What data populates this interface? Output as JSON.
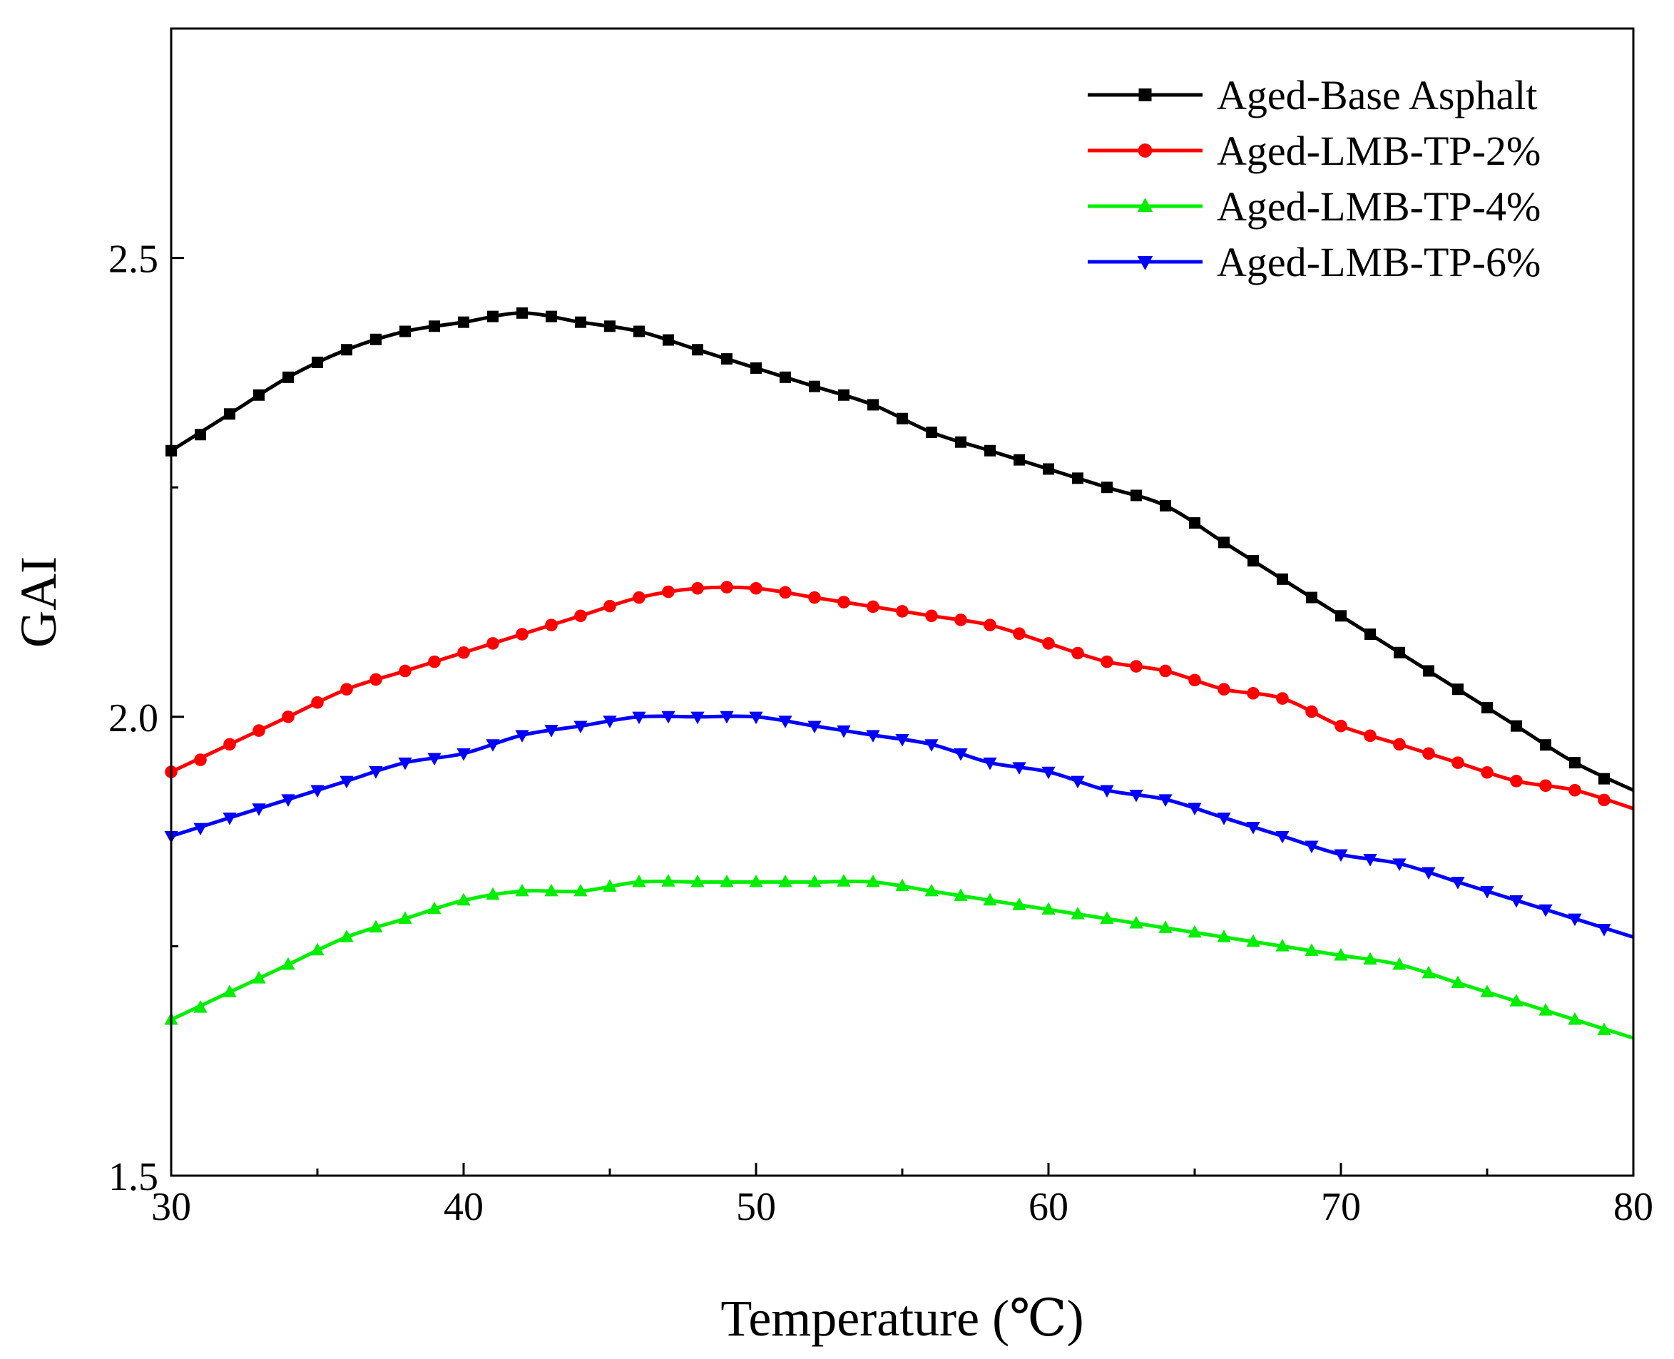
{
  "chart_data": {
    "type": "line",
    "title": "",
    "xlabel": "Temperature (℃)",
    "ylabel": "GAI",
    "xlim": [
      30,
      80
    ],
    "ylim": [
      1.5,
      2.75
    ],
    "xticks": [
      30,
      40,
      50,
      60,
      70,
      80
    ],
    "xtick_labels": [
      "30",
      "40",
      "50",
      "60",
      "70",
      "80"
    ],
    "yticks": [
      1.5,
      2.0,
      2.5
    ],
    "ytick_labels": [
      "1.5",
      "2.0",
      "2.5"
    ],
    "legend_position": "top-right",
    "series": [
      {
        "name": "Aged-Base Asphalt",
        "color": "#000000",
        "marker": "square",
        "points": [
          [
            30,
            2.29
          ],
          [
            32,
            2.33
          ],
          [
            34,
            2.37
          ],
          [
            36,
            2.4
          ],
          [
            38,
            2.42
          ],
          [
            40,
            2.43
          ],
          [
            42,
            2.44
          ],
          [
            44,
            2.43
          ],
          [
            46,
            2.42
          ],
          [
            48,
            2.4
          ],
          [
            50,
            2.38
          ],
          [
            52,
            2.36
          ],
          [
            54,
            2.34
          ],
          [
            56,
            2.31
          ],
          [
            58,
            2.29
          ],
          [
            60,
            2.27
          ],
          [
            62,
            2.25
          ],
          [
            64,
            2.23
          ],
          [
            66,
            2.19
          ],
          [
            68,
            2.15
          ],
          [
            70,
            2.11
          ],
          [
            72,
            2.07
          ],
          [
            74,
            2.03
          ],
          [
            76,
            1.99
          ],
          [
            78,
            1.95
          ],
          [
            80,
            1.92
          ]
        ]
      },
      {
        "name": "Aged-LMB-TP-2%",
        "color": "#ff0000",
        "marker": "circle",
        "points": [
          [
            30,
            1.94
          ],
          [
            32,
            1.97
          ],
          [
            34,
            2.0
          ],
          [
            36,
            2.03
          ],
          [
            38,
            2.05
          ],
          [
            40,
            2.07
          ],
          [
            42,
            2.09
          ],
          [
            44,
            2.11
          ],
          [
            46,
            2.13
          ],
          [
            48,
            2.14
          ],
          [
            50,
            2.14
          ],
          [
            52,
            2.13
          ],
          [
            54,
            2.12
          ],
          [
            56,
            2.11
          ],
          [
            58,
            2.1
          ],
          [
            60,
            2.08
          ],
          [
            62,
            2.06
          ],
          [
            64,
            2.05
          ],
          [
            66,
            2.03
          ],
          [
            68,
            2.02
          ],
          [
            70,
            1.99
          ],
          [
            72,
            1.97
          ],
          [
            74,
            1.95
          ],
          [
            76,
            1.93
          ],
          [
            78,
            1.92
          ],
          [
            80,
            1.9
          ]
        ]
      },
      {
        "name": "Aged-LMB-TP-4%",
        "color": "#00ee00",
        "marker": "triangle-up",
        "points": [
          [
            30,
            1.67
          ],
          [
            32,
            1.7
          ],
          [
            34,
            1.73
          ],
          [
            36,
            1.76
          ],
          [
            38,
            1.78
          ],
          [
            40,
            1.8
          ],
          [
            42,
            1.81
          ],
          [
            44,
            1.81
          ],
          [
            46,
            1.82
          ],
          [
            48,
            1.82
          ],
          [
            50,
            1.82
          ],
          [
            52,
            1.82
          ],
          [
            54,
            1.82
          ],
          [
            56,
            1.81
          ],
          [
            58,
            1.8
          ],
          [
            60,
            1.79
          ],
          [
            62,
            1.78
          ],
          [
            64,
            1.77
          ],
          [
            66,
            1.76
          ],
          [
            68,
            1.75
          ],
          [
            70,
            1.74
          ],
          [
            72,
            1.73
          ],
          [
            74,
            1.71
          ],
          [
            76,
            1.69
          ],
          [
            78,
            1.67
          ],
          [
            80,
            1.65
          ]
        ]
      },
      {
        "name": "Aged-LMB-TP-6%",
        "color": "#0000ff",
        "marker": "triangle-down",
        "points": [
          [
            30,
            1.87
          ],
          [
            32,
            1.89
          ],
          [
            34,
            1.91
          ],
          [
            36,
            1.93
          ],
          [
            38,
            1.95
          ],
          [
            40,
            1.96
          ],
          [
            42,
            1.98
          ],
          [
            44,
            1.99
          ],
          [
            46,
            2.0
          ],
          [
            48,
            2.0
          ],
          [
            50,
            2.0
          ],
          [
            52,
            1.99
          ],
          [
            54,
            1.98
          ],
          [
            56,
            1.97
          ],
          [
            58,
            1.95
          ],
          [
            60,
            1.94
          ],
          [
            62,
            1.92
          ],
          [
            64,
            1.91
          ],
          [
            66,
            1.89
          ],
          [
            68,
            1.87
          ],
          [
            70,
            1.85
          ],
          [
            72,
            1.84
          ],
          [
            74,
            1.82
          ],
          [
            76,
            1.8
          ],
          [
            78,
            1.78
          ],
          [
            80,
            1.76
          ]
        ]
      }
    ]
  }
}
